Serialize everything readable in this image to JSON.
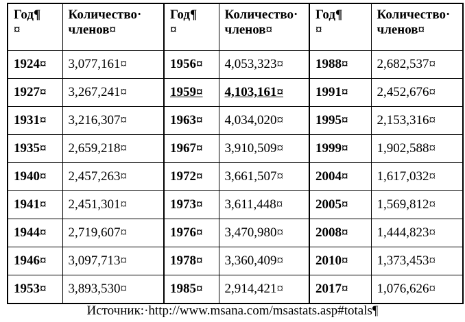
{
  "table": {
    "header": [
      [
        "Год¶",
        "¤"
      ],
      [
        "Количество·",
        "членов¤"
      ],
      [
        "Год¶",
        "¤"
      ],
      [
        "Количество·",
        "членов¤"
      ],
      [
        "Год¶",
        "¤"
      ],
      [
        "Количество·",
        "членов¤"
      ]
    ],
    "rows": [
      [
        "1924¤",
        "3,077,161¤",
        "1956¤",
        "4,053,323¤",
        "1988¤",
        "2,682,537¤"
      ],
      [
        "1927¤",
        "3,267,241¤",
        "1959¤",
        "4,103,161¤",
        "1991¤",
        "2,452,676¤"
      ],
      [
        "1931¤",
        "3,216,307¤",
        "1963¤",
        "4,034,020¤",
        "1995¤",
        "2,153,316¤"
      ],
      [
        "1935¤",
        "2,659,218¤",
        "1967¤",
        "3,910,509¤",
        "1999¤",
        "1,902,588¤"
      ],
      [
        "1940¤",
        "2,457,263¤",
        "1972¤",
        "3,661,507¤",
        "2004¤",
        "1,617,032¤"
      ],
      [
        "1941¤",
        "2,451,301¤",
        "1973¤",
        "3,611,448¤",
        "2005¤",
        "1,569,812¤"
      ],
      [
        "1944¤",
        "2,719,607¤",
        "1976¤",
        "3,470,980¤",
        "2008¤",
        "1,444,823¤"
      ],
      [
        "1946¤",
        "3,097,713¤",
        "1978¤",
        "3,360,409¤",
        "2010¤",
        "1,373,453¤"
      ],
      [
        "1953¤",
        "3,893,530¤",
        "1985¤",
        "2,914,421¤",
        "2017¤",
        "1,076,626¤"
      ]
    ]
  },
  "source": "Источник:·http://www.msana.com/msastats.asp#totals¶"
}
